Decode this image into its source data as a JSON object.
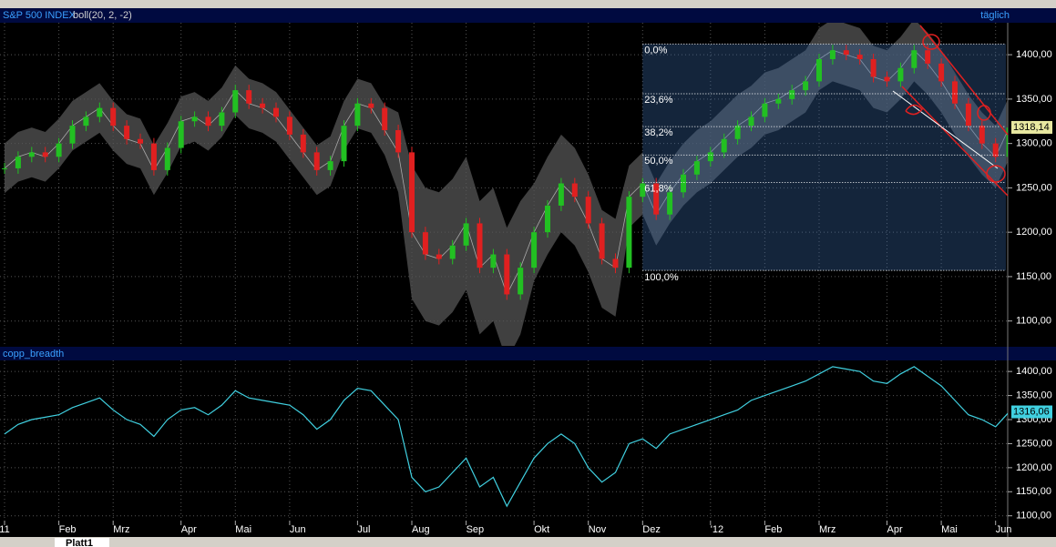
{
  "ui": {
    "tab": "Platt1"
  },
  "chart_data": [
    {
      "type": "candlestick",
      "title": "S&P 500 INDEX",
      "subtitle": "boll(20, 2, -2)",
      "period": "täglich",
      "values": [
        1272,
        1285,
        1290,
        1285,
        1300,
        1320,
        1330,
        1340,
        1320,
        1305,
        1300,
        1270,
        1295,
        1325,
        1330,
        1320,
        1335,
        1360,
        1345,
        1340,
        1330,
        1310,
        1290,
        1270,
        1280,
        1320,
        1345,
        1340,
        1315,
        1290,
        1200,
        1175,
        1170,
        1185,
        1210,
        1160,
        1175,
        1130,
        1160,
        1200,
        1230,
        1255,
        1240,
        1210,
        1170,
        1160,
        1240,
        1255,
        1220,
        1245,
        1265,
        1280,
        1290,
        1305,
        1320,
        1330,
        1345,
        1350,
        1360,
        1370,
        1395,
        1405,
        1400,
        1395,
        1375,
        1370,
        1385,
        1405,
        1390,
        1370,
        1345,
        1320,
        1300,
        1285,
        1318
      ],
      "band_upper": [
        1300,
        1313,
        1318,
        1313,
        1328,
        1348,
        1358,
        1368,
        1348,
        1333,
        1328,
        1298,
        1323,
        1353,
        1358,
        1348,
        1363,
        1388,
        1373,
        1368,
        1358,
        1338,
        1318,
        1298,
        1308,
        1348,
        1373,
        1368,
        1343,
        1335,
        1275,
        1250,
        1245,
        1260,
        1285,
        1235,
        1250,
        1205,
        1235,
        1255,
        1285,
        1310,
        1295,
        1265,
        1225,
        1215,
        1275,
        1290,
        1255,
        1280,
        1300,
        1315,
        1325,
        1340,
        1355,
        1365,
        1380,
        1385,
        1395,
        1405,
        1430,
        1440,
        1435,
        1430,
        1410,
        1405,
        1420,
        1440,
        1425,
        1405,
        1380,
        1355,
        1335,
        1320,
        1353
      ],
      "band_lower": [
        1244,
        1257,
        1262,
        1257,
        1272,
        1292,
        1302,
        1312,
        1292,
        1277,
        1272,
        1242,
        1267,
        1297,
        1302,
        1292,
        1307,
        1332,
        1317,
        1312,
        1302,
        1282,
        1262,
        1242,
        1252,
        1292,
        1317,
        1312,
        1287,
        1245,
        1125,
        1100,
        1095,
        1110,
        1135,
        1085,
        1100,
        1055,
        1085,
        1145,
        1175,
        1200,
        1185,
        1155,
        1115,
        1105,
        1205,
        1220,
        1185,
        1210,
        1230,
        1245,
        1255,
        1270,
        1285,
        1295,
        1310,
        1315,
        1325,
        1335,
        1360,
        1370,
        1365,
        1360,
        1340,
        1335,
        1350,
        1370,
        1355,
        1335,
        1310,
        1285,
        1265,
        1250,
        1283
      ],
      "up_color": "#22c022",
      "down_color": "#e02020",
      "band_color": "#555555",
      "ylim": [
        1072,
        1436
      ],
      "yticks": [
        {
          "value": 1400,
          "label": "1400,00"
        },
        {
          "value": 1350,
          "label": "1350,00"
        },
        {
          "value": 1300,
          "label": "1300,00"
        },
        {
          "value": 1250,
          "label": "1250,00"
        },
        {
          "value": 1200,
          "label": "1200,00"
        },
        {
          "value": 1150,
          "label": "1150,00"
        },
        {
          "value": 1100,
          "label": "1100,00"
        }
      ],
      "last": {
        "value": 1318.14,
        "label": "1318,14"
      },
      "fib": {
        "start": 47,
        "levels": [
          {
            "value": 1412,
            "label": "0,0%"
          },
          {
            "value": 1356,
            "label": "23,6%"
          },
          {
            "value": 1319,
            "label": "38,2%"
          },
          {
            "value": 1287,
            "label": "50,0%"
          },
          {
            "value": 1256,
            "label": "61,8%"
          },
          {
            "value": 1157,
            "label": "100,0%"
          }
        ]
      },
      "grid": true
    },
    {
      "type": "line",
      "title": "copp_breadth",
      "color": "#40d0e0",
      "values": [
        1270,
        1290,
        1300,
        1305,
        1310,
        1325,
        1335,
        1345,
        1320,
        1300,
        1290,
        1265,
        1300,
        1320,
        1325,
        1310,
        1330,
        1360,
        1345,
        1340,
        1335,
        1330,
        1310,
        1280,
        1300,
        1340,
        1365,
        1360,
        1330,
        1300,
        1180,
        1150,
        1160,
        1190,
        1220,
        1160,
        1180,
        1120,
        1170,
        1220,
        1250,
        1270,
        1250,
        1200,
        1170,
        1190,
        1250,
        1260,
        1240,
        1270,
        1280,
        1290,
        1300,
        1310,
        1320,
        1340,
        1350,
        1360,
        1370,
        1380,
        1395,
        1410,
        1405,
        1400,
        1380,
        1375,
        1395,
        1410,
        1390,
        1370,
        1340,
        1310,
        1300,
        1285,
        1316
      ],
      "ylim": [
        1090,
        1423
      ],
      "yticks": [
        {
          "value": 1400,
          "label": "1400,00"
        },
        {
          "value": 1350,
          "label": "1350,00"
        },
        {
          "value": 1300,
          "label": "1300,00"
        },
        {
          "value": 1250,
          "label": "1250,00"
        },
        {
          "value": 1200,
          "label": "1200,00"
        },
        {
          "value": 1150,
          "label": "1150,00"
        },
        {
          "value": 1100,
          "label": "1100,00"
        }
      ],
      "last": {
        "value": 1316.06,
        "label": "1316,06"
      },
      "xticks": [
        {
          "value": 0,
          "label": "11"
        },
        {
          "value": 4,
          "label": "Feb"
        },
        {
          "value": 8,
          "label": "Mrz"
        },
        {
          "value": 13,
          "label": "Apr"
        },
        {
          "value": 17,
          "label": "Mai"
        },
        {
          "value": 21,
          "label": "Jun"
        },
        {
          "value": 26,
          "label": "Jul"
        },
        {
          "value": 30,
          "label": "Aug"
        },
        {
          "value": 34,
          "label": "Sep"
        },
        {
          "value": 39,
          "label": "Okt"
        },
        {
          "value": 43,
          "label": "Nov"
        },
        {
          "value": 47,
          "label": "Dez"
        },
        {
          "value": 52,
          "label": "'12"
        },
        {
          "value": 56,
          "label": "Feb"
        },
        {
          "value": 60,
          "label": "Mrz"
        },
        {
          "value": 65,
          "label": "Apr"
        },
        {
          "value": 69,
          "label": "Mai"
        },
        {
          "value": 73,
          "label": "Jun"
        }
      ],
      "grid": true
    }
  ]
}
